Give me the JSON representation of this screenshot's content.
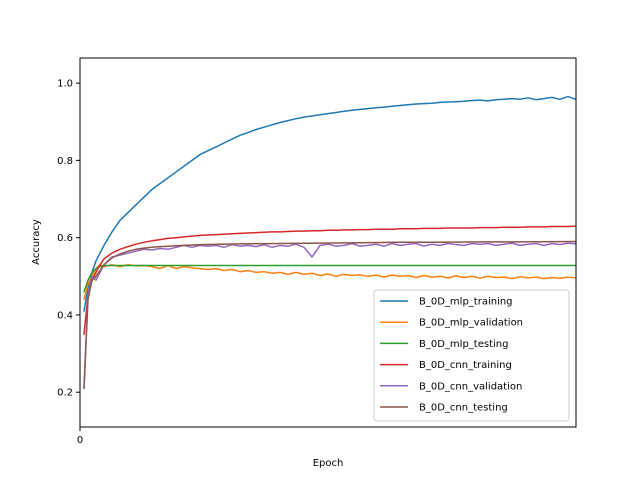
{
  "chart_data": {
    "type": "line",
    "title": "",
    "xlabel": "Epoch",
    "ylabel": "Accuracy",
    "xlim": [
      0,
      124
    ],
    "ylim": [
      0.11,
      1.065
    ],
    "xticks": [
      0
    ],
    "yticks": [
      0.2,
      0.4,
      0.6,
      0.8,
      1.0
    ],
    "ytick_labels": [
      "0.2",
      "0.4",
      "0.6",
      "0.8",
      "1.0"
    ],
    "legend_position": "lower-right",
    "grid": false,
    "series": [
      {
        "name": "B_0D_mlp_training",
        "color": "#1f77b4",
        "points": [
          [
            1,
            0.41
          ],
          [
            2,
            0.47
          ],
          [
            3,
            0.51
          ],
          [
            4,
            0.54
          ],
          [
            5,
            0.56
          ],
          [
            6,
            0.58
          ],
          [
            8,
            0.615
          ],
          [
            10,
            0.645
          ],
          [
            12,
            0.665
          ],
          [
            14,
            0.685
          ],
          [
            16,
            0.705
          ],
          [
            18,
            0.725
          ],
          [
            20,
            0.74
          ],
          [
            22,
            0.755
          ],
          [
            24,
            0.77
          ],
          [
            26,
            0.785
          ],
          [
            28,
            0.8
          ],
          [
            30,
            0.815
          ],
          [
            32,
            0.825
          ],
          [
            34,
            0.835
          ],
          [
            36,
            0.845
          ],
          [
            38,
            0.855
          ],
          [
            40,
            0.865
          ],
          [
            42,
            0.872
          ],
          [
            44,
            0.88
          ],
          [
            46,
            0.886
          ],
          [
            48,
            0.892
          ],
          [
            50,
            0.898
          ],
          [
            52,
            0.903
          ],
          [
            54,
            0.908
          ],
          [
            56,
            0.912
          ],
          [
            58,
            0.915
          ],
          [
            60,
            0.918
          ],
          [
            62,
            0.921
          ],
          [
            64,
            0.924
          ],
          [
            66,
            0.927
          ],
          [
            68,
            0.93
          ],
          [
            70,
            0.932
          ],
          [
            72,
            0.934
          ],
          [
            74,
            0.936
          ],
          [
            76,
            0.938
          ],
          [
            78,
            0.94
          ],
          [
            80,
            0.942
          ],
          [
            82,
            0.944
          ],
          [
            84,
            0.946
          ],
          [
            86,
            0.947
          ],
          [
            88,
            0.948
          ],
          [
            90,
            0.95
          ],
          [
            92,
            0.951
          ],
          [
            94,
            0.952
          ],
          [
            96,
            0.953
          ],
          [
            98,
            0.955
          ],
          [
            100,
            0.956
          ],
          [
            102,
            0.954
          ],
          [
            104,
            0.957
          ],
          [
            106,
            0.958
          ],
          [
            108,
            0.96
          ],
          [
            110,
            0.958
          ],
          [
            112,
            0.962
          ],
          [
            114,
            0.957
          ],
          [
            116,
            0.96
          ],
          [
            118,
            0.963
          ],
          [
            120,
            0.958
          ],
          [
            122,
            0.965
          ],
          [
            124,
            0.958
          ]
        ]
      },
      {
        "name": "B_0D_mlp_validation",
        "color": "#ff7f0e",
        "points": [
          [
            1,
            0.44
          ],
          [
            2,
            0.48
          ],
          [
            3,
            0.5
          ],
          [
            4,
            0.52
          ],
          [
            5,
            0.53
          ],
          [
            6,
            0.525
          ],
          [
            8,
            0.53
          ],
          [
            10,
            0.525
          ],
          [
            12,
            0.53
          ],
          [
            14,
            0.527
          ],
          [
            16,
            0.528
          ],
          [
            18,
            0.525
          ],
          [
            20,
            0.52
          ],
          [
            22,
            0.528
          ],
          [
            24,
            0.52
          ],
          [
            26,
            0.525
          ],
          [
            28,
            0.522
          ],
          [
            30,
            0.52
          ],
          [
            32,
            0.518
          ],
          [
            34,
            0.52
          ],
          [
            36,
            0.515
          ],
          [
            38,
            0.518
          ],
          [
            40,
            0.512
          ],
          [
            42,
            0.515
          ],
          [
            44,
            0.51
          ],
          [
            46,
            0.512
          ],
          [
            48,
            0.508
          ],
          [
            50,
            0.51
          ],
          [
            52,
            0.505
          ],
          [
            54,
            0.51
          ],
          [
            56,
            0.505
          ],
          [
            58,
            0.508
          ],
          [
            60,
            0.502
          ],
          [
            62,
            0.506
          ],
          [
            64,
            0.5
          ],
          [
            66,
            0.505
          ],
          [
            68,
            0.502
          ],
          [
            70,
            0.504
          ],
          [
            72,
            0.5
          ],
          [
            74,
            0.503
          ],
          [
            76,
            0.498
          ],
          [
            78,
            0.503
          ],
          [
            80,
            0.5
          ],
          [
            82,
            0.502
          ],
          [
            84,
            0.497
          ],
          [
            86,
            0.502
          ],
          [
            88,
            0.498
          ],
          [
            90,
            0.5
          ],
          [
            92,
            0.496
          ],
          [
            94,
            0.501
          ],
          [
            96,
            0.497
          ],
          [
            98,
            0.5
          ],
          [
            100,
            0.495
          ],
          [
            102,
            0.5
          ],
          [
            104,
            0.497
          ],
          [
            106,
            0.498
          ],
          [
            108,
            0.494
          ],
          [
            110,
            0.499
          ],
          [
            112,
            0.496
          ],
          [
            114,
            0.498
          ],
          [
            116,
            0.494
          ],
          [
            118,
            0.497
          ],
          [
            120,
            0.495
          ],
          [
            122,
            0.498
          ],
          [
            124,
            0.496
          ]
        ]
      },
      {
        "name": "B_0D_mlp_testing",
        "color": "#2ca02c",
        "points": [
          [
            1,
            0.46
          ],
          [
            2,
            0.49
          ],
          [
            3,
            0.51
          ],
          [
            4,
            0.52
          ],
          [
            5,
            0.525
          ],
          [
            6,
            0.528
          ],
          [
            8,
            0.528
          ],
          [
            124,
            0.528
          ]
        ]
      },
      {
        "name": "B_0D_cnn_training",
        "color": "#d62728",
        "points": [
          [
            1,
            0.35
          ],
          [
            2,
            0.45
          ],
          [
            3,
            0.49
          ],
          [
            4,
            0.51
          ],
          [
            5,
            0.53
          ],
          [
            6,
            0.545
          ],
          [
            8,
            0.56
          ],
          [
            10,
            0.57
          ],
          [
            12,
            0.577
          ],
          [
            14,
            0.583
          ],
          [
            16,
            0.588
          ],
          [
            18,
            0.592
          ],
          [
            20,
            0.595
          ],
          [
            22,
            0.598
          ],
          [
            24,
            0.6
          ],
          [
            26,
            0.602
          ],
          [
            28,
            0.604
          ],
          [
            30,
            0.606
          ],
          [
            32,
            0.607
          ],
          [
            34,
            0.608
          ],
          [
            36,
            0.609
          ],
          [
            38,
            0.61
          ],
          [
            40,
            0.611
          ],
          [
            42,
            0.612
          ],
          [
            44,
            0.613
          ],
          [
            46,
            0.614
          ],
          [
            48,
            0.615
          ],
          [
            50,
            0.615
          ],
          [
            52,
            0.616
          ],
          [
            54,
            0.617
          ],
          [
            56,
            0.617
          ],
          [
            58,
            0.618
          ],
          [
            60,
            0.618
          ],
          [
            62,
            0.619
          ],
          [
            64,
            0.619
          ],
          [
            66,
            0.62
          ],
          [
            68,
            0.62
          ],
          [
            70,
            0.621
          ],
          [
            72,
            0.621
          ],
          [
            74,
            0.622
          ],
          [
            76,
            0.622
          ],
          [
            78,
            0.622
          ],
          [
            80,
            0.623
          ],
          [
            82,
            0.623
          ],
          [
            84,
            0.623
          ],
          [
            86,
            0.624
          ],
          [
            88,
            0.624
          ],
          [
            90,
            0.624
          ],
          [
            92,
            0.625
          ],
          [
            94,
            0.625
          ],
          [
            96,
            0.625
          ],
          [
            98,
            0.625
          ],
          [
            100,
            0.626
          ],
          [
            102,
            0.626
          ],
          [
            104,
            0.626
          ],
          [
            106,
            0.627
          ],
          [
            108,
            0.627
          ],
          [
            110,
            0.627
          ],
          [
            112,
            0.628
          ],
          [
            114,
            0.628
          ],
          [
            116,
            0.628
          ],
          [
            118,
            0.629
          ],
          [
            120,
            0.629
          ],
          [
            122,
            0.629
          ],
          [
            124,
            0.63
          ]
        ]
      },
      {
        "name": "B_0D_cnn_validation",
        "color": "#9467bd",
        "points": [
          [
            1,
            0.21
          ],
          [
            2,
            0.45
          ],
          [
            3,
            0.5
          ],
          [
            4,
            0.49
          ],
          [
            5,
            0.51
          ],
          [
            6,
            0.53
          ],
          [
            8,
            0.55
          ],
          [
            10,
            0.555
          ],
          [
            12,
            0.56
          ],
          [
            14,
            0.565
          ],
          [
            16,
            0.57
          ],
          [
            18,
            0.568
          ],
          [
            20,
            0.572
          ],
          [
            22,
            0.57
          ],
          [
            24,
            0.575
          ],
          [
            26,
            0.58
          ],
          [
            28,
            0.575
          ],
          [
            30,
            0.58
          ],
          [
            32,
            0.578
          ],
          [
            34,
            0.58
          ],
          [
            36,
            0.575
          ],
          [
            38,
            0.582
          ],
          [
            40,
            0.578
          ],
          [
            42,
            0.58
          ],
          [
            44,
            0.577
          ],
          [
            46,
            0.582
          ],
          [
            48,
            0.575
          ],
          [
            50,
            0.58
          ],
          [
            52,
            0.578
          ],
          [
            54,
            0.583
          ],
          [
            56,
            0.575
          ],
          [
            58,
            0.55
          ],
          [
            60,
            0.58
          ],
          [
            62,
            0.583
          ],
          [
            64,
            0.578
          ],
          [
            66,
            0.58
          ],
          [
            68,
            0.585
          ],
          [
            70,
            0.578
          ],
          [
            72,
            0.58
          ],
          [
            74,
            0.583
          ],
          [
            76,
            0.578
          ],
          [
            78,
            0.585
          ],
          [
            80,
            0.58
          ],
          [
            82,
            0.583
          ],
          [
            84,
            0.585
          ],
          [
            86,
            0.578
          ],
          [
            88,
            0.583
          ],
          [
            90,
            0.58
          ],
          [
            92,
            0.585
          ],
          [
            94,
            0.582
          ],
          [
            96,
            0.58
          ],
          [
            98,
            0.585
          ],
          [
            100,
            0.583
          ],
          [
            102,
            0.585
          ],
          [
            104,
            0.58
          ],
          [
            106,
            0.583
          ],
          [
            108,
            0.586
          ],
          [
            110,
            0.58
          ],
          [
            112,
            0.583
          ],
          [
            114,
            0.585
          ],
          [
            116,
            0.58
          ],
          [
            118,
            0.585
          ],
          [
            120,
            0.582
          ],
          [
            122,
            0.586
          ],
          [
            124,
            0.584
          ]
        ]
      },
      {
        "name": "B_0D_cnn_testing",
        "color": "#8c564b",
        "points": [
          [
            1,
            0.21
          ],
          [
            2,
            0.44
          ],
          [
            3,
            0.49
          ],
          [
            4,
            0.5
          ],
          [
            5,
            0.515
          ],
          [
            6,
            0.53
          ],
          [
            8,
            0.548
          ],
          [
            10,
            0.558
          ],
          [
            12,
            0.565
          ],
          [
            14,
            0.57
          ],
          [
            16,
            0.573
          ],
          [
            18,
            0.575
          ],
          [
            20,
            0.577
          ],
          [
            22,
            0.578
          ],
          [
            24,
            0.579
          ],
          [
            26,
            0.58
          ],
          [
            28,
            0.581
          ],
          [
            30,
            0.582
          ],
          [
            40,
            0.584
          ],
          [
            50,
            0.585
          ],
          [
            60,
            0.586
          ],
          [
            70,
            0.587
          ],
          [
            80,
            0.588
          ],
          [
            90,
            0.588
          ],
          [
            100,
            0.589
          ],
          [
            110,
            0.589
          ],
          [
            124,
            0.59
          ]
        ]
      }
    ]
  }
}
